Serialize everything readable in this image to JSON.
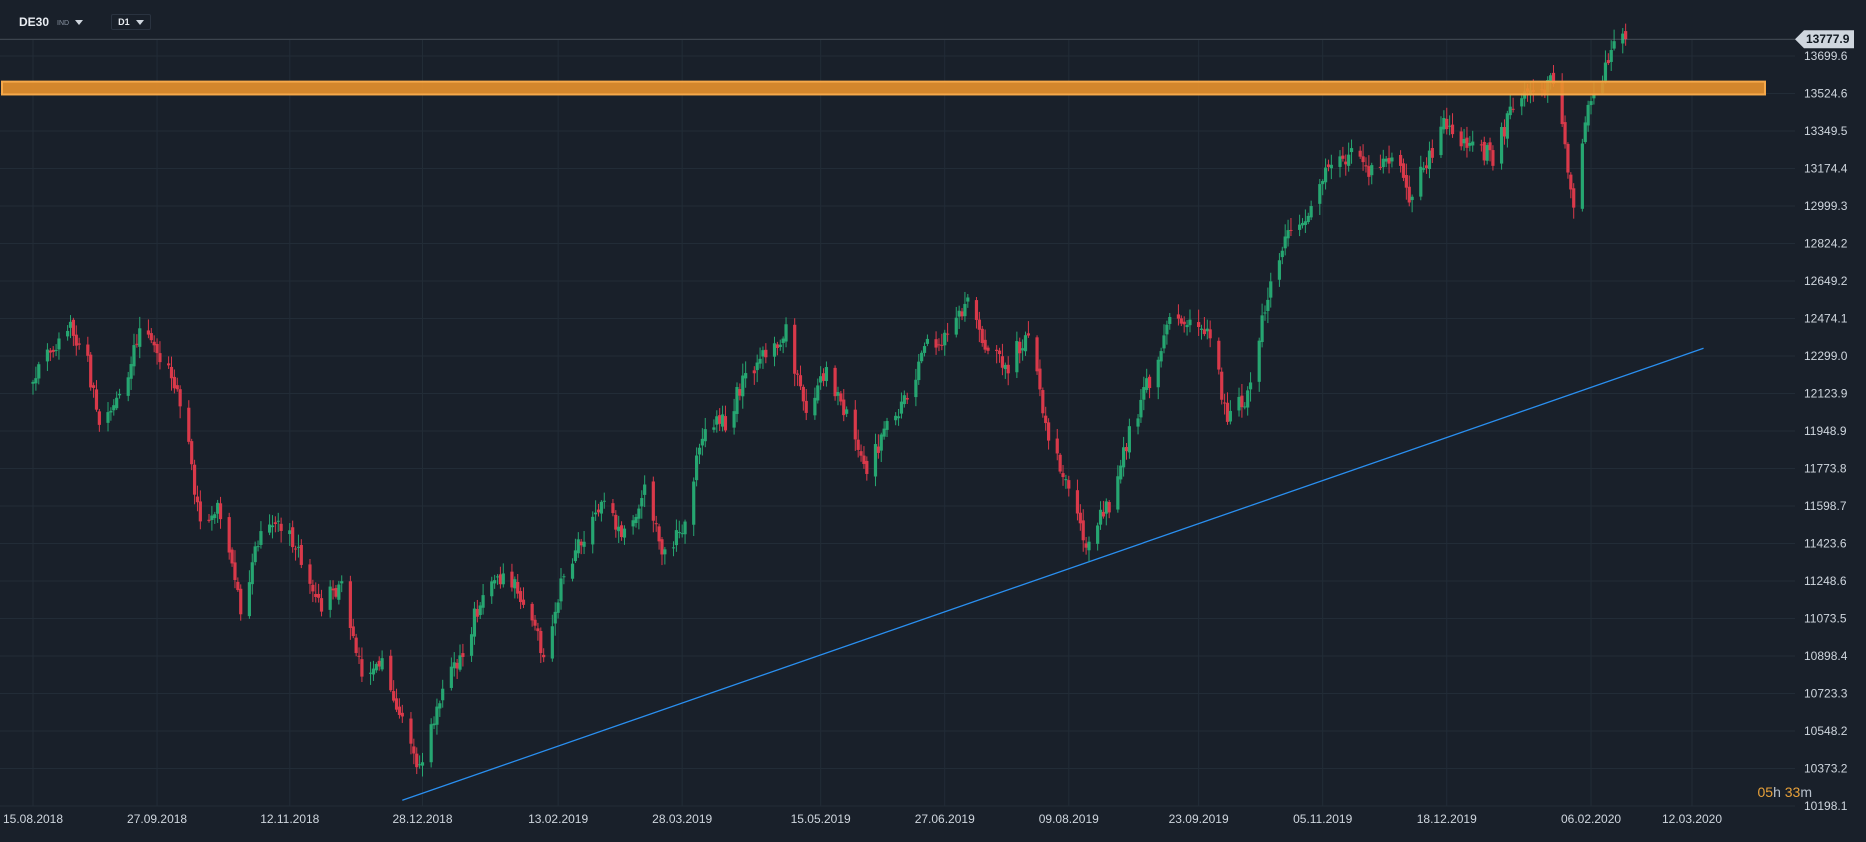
{
  "header": {
    "symbol": "DE30",
    "type_badge": "IND",
    "timeframe": "D1"
  },
  "countdown": {
    "hours": "05",
    "h_unit": "h",
    "minutes": "33",
    "m_unit": "m"
  },
  "colors": {
    "background": "#19202a",
    "grid": "#222c37",
    "up": "#26a671",
    "down": "#d9394a",
    "resistance_zone": "#e8912c",
    "trendline": "#2a8ff0",
    "axis_text": "#cfd6de",
    "price_tag_bg": "#cfd6de",
    "price_tag_text": "#101820"
  },
  "chart_data": {
    "type": "candlestick",
    "x_ticks": [
      "15.08.2018",
      "27.09.2018",
      "12.11.2018",
      "28.12.2018",
      "13.02.2019",
      "28.03.2019",
      "15.05.2019",
      "27.06.2019",
      "09.08.2019",
      "23.09.2019",
      "05.11.2019",
      "18.12.2019",
      "06.02.2020",
      "12.03.2020"
    ],
    "y_ticks": [
      13699.6,
      13524.6,
      13349.5,
      13174.4,
      12999.3,
      12824.2,
      12649.2,
      12474.1,
      12299.0,
      12123.9,
      11948.9,
      11773.8,
      11598.7,
      11423.6,
      11248.6,
      11073.5,
      10898.4,
      10723.3,
      10548.2,
      10373.2,
      10198.1
    ],
    "y_range": [
      10198.1,
      13880
    ],
    "current_price": "13777.9",
    "current_price_value": 13777.9,
    "resistance_zone": {
      "low": 13520,
      "high": 13580
    },
    "trendline": {
      "start": {
        "date": "21.12.2018",
        "price": 10225
      },
      "end": {
        "date": "16.03.2020",
        "price": 12335
      }
    },
    "anchors": [
      [
        "15.08.2018",
        12180
      ],
      [
        "27.08.2018",
        12450
      ],
      [
        "31.08.2018",
        12370
      ],
      [
        "03.09.2018",
        12270
      ],
      [
        "07.09.2018",
        11950
      ],
      [
        "14.09.2018",
        12100
      ],
      [
        "21.09.2018",
        12420
      ],
      [
        "28.09.2018",
        12300
      ],
      [
        "05.10.2018",
        12100
      ],
      [
        "12.10.2018",
        11530
      ],
      [
        "18.10.2018",
        11600
      ],
      [
        "26.10.2018",
        11120
      ],
      [
        "02.11.2018",
        11500
      ],
      [
        "09.11.2018",
        11520
      ],
      [
        "16.11.2018",
        11340
      ],
      [
        "23.11.2018",
        11140
      ],
      [
        "30.11.2018",
        11250
      ],
      [
        "07.12.2018",
        10790
      ],
      [
        "13.12.2018",
        10880
      ],
      [
        "21.12.2018",
        10630
      ],
      [
        "27.12.2018",
        10380
      ],
      [
        "04.01.2019",
        10760
      ],
      [
        "11.01.2019",
        10920
      ],
      [
        "18.01.2019",
        11200
      ],
      [
        "25.01.2019",
        11260
      ],
      [
        "01.02.2019",
        11180
      ],
      [
        "08.02.2019",
        10920
      ],
      [
        "15.02.2019",
        11290
      ],
      [
        "22.02.2019",
        11460
      ],
      [
        "01.03.2019",
        11610
      ],
      [
        "08.03.2019",
        11460
      ],
      [
        "15.03.2019",
        11690
      ],
      [
        "22.03.2019",
        11360
      ],
      [
        "29.03.2019",
        11530
      ],
      [
        "05.04.2019",
        11990
      ],
      [
        "12.04.2019",
        11990
      ],
      [
        "19.04.2019",
        12210
      ],
      [
        "26.04.2019",
        12320
      ],
      [
        "03.05.2019",
        12410
      ],
      [
        "10.05.2019",
        12050
      ],
      [
        "17.05.2019",
        12220
      ],
      [
        "24.05.2019",
        12010
      ],
      [
        "31.05.2019",
        11730
      ],
      [
        "07.06.2019",
        12000
      ],
      [
        "14.06.2019",
        12090
      ],
      [
        "21.06.2019",
        12350
      ],
      [
        "28.06.2019",
        12400
      ],
      [
        "05.07.2019",
        12560
      ],
      [
        "12.07.2019",
        12320
      ],
      [
        "19.07.2019",
        12260
      ],
      [
        "26.07.2019",
        12420
      ],
      [
        "02.08.2019",
        11890
      ],
      [
        "09.08.2019",
        11700
      ],
      [
        "15.08.2019",
        11420
      ],
      [
        "23.08.2019",
        11610
      ],
      [
        "30.08.2019",
        11940
      ],
      [
        "06.09.2019",
        12190
      ],
      [
        "13.09.2019",
        12470
      ],
      [
        "20.09.2019",
        12450
      ],
      [
        "27.09.2019",
        12380
      ],
      [
        "03.10.2019",
        12010
      ],
      [
        "09.10.2019",
        12090
      ],
      [
        "18.10.2019",
        12630
      ],
      [
        "25.10.2019",
        12890
      ],
      [
        "01.11.2019",
        12960
      ],
      [
        "08.11.2019",
        13230
      ],
      [
        "15.11.2019",
        13240
      ],
      [
        "22.11.2019",
        13160
      ],
      [
        "29.11.2019",
        13240
      ],
      [
        "05.12.2019",
        13050
      ],
      [
        "12.12.2019",
        13220
      ],
      [
        "16.12.2019",
        13400
      ],
      [
        "20.12.2019",
        13320
      ],
      [
        "27.12.2019",
        13300
      ],
      [
        "03.01.2020",
        13220
      ],
      [
        "10.01.2020",
        13480
      ],
      [
        "17.01.2020",
        13520
      ],
      [
        "24.01.2020",
        13580
      ],
      [
        "28.01.2020",
        13260
      ],
      [
        "31.01.2020",
        12980
      ],
      [
        "05.02.2020",
        13480
      ],
      [
        "10.02.2020",
        13600
      ],
      [
        "14.02.2020",
        13740
      ],
      [
        "18.02.2020",
        13777.9
      ]
    ]
  }
}
